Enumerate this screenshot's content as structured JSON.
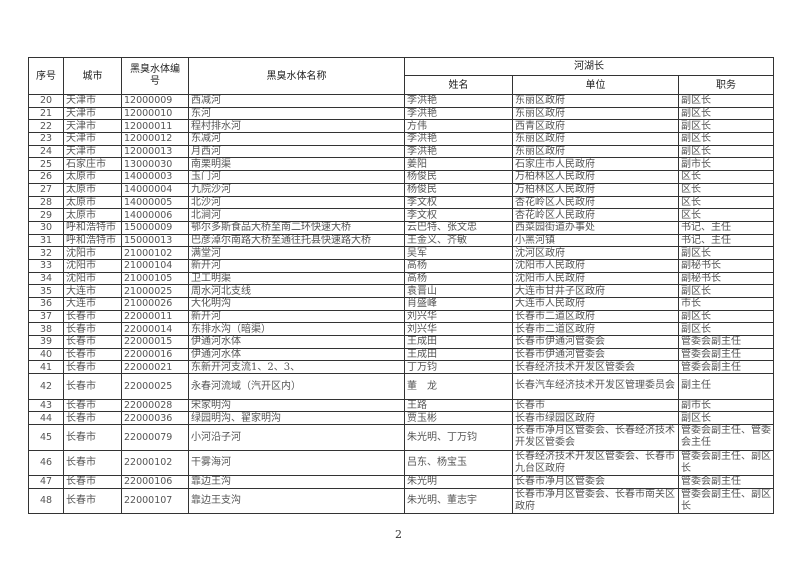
{
  "headers": {
    "index": "序号",
    "city": "城市",
    "code": "黑臭水体编号",
    "name": "黑臭水体名称",
    "chief_group": "河湖长",
    "chief_name": "姓名",
    "chief_unit": "单位",
    "chief_title": "职务"
  },
  "rows": [
    {
      "no": "20",
      "city": "天津市",
      "code": "12000009",
      "name": "西减河",
      "person": "李洪艳",
      "unit": "东丽区政府",
      "title": "副区长"
    },
    {
      "no": "21",
      "city": "天津市",
      "code": "12000010",
      "name": "东河",
      "person": "李洪艳",
      "unit": "东丽区政府",
      "title": "副区长"
    },
    {
      "no": "22",
      "city": "天津市",
      "code": "12000011",
      "name": "程村排水河",
      "person": "方伟",
      "unit": "西青区政府",
      "title": "副区长"
    },
    {
      "no": "23",
      "city": "天津市",
      "code": "12000012",
      "name": "东减河",
      "person": "李洪艳",
      "unit": "东丽区政府",
      "title": "副区长"
    },
    {
      "no": "24",
      "city": "天津市",
      "code": "12000013",
      "name": "月西河",
      "person": "李洪艳",
      "unit": "东丽区政府",
      "title": "副区长"
    },
    {
      "no": "25",
      "city": "石家庄市",
      "code": "13000030",
      "name": "南栗明渠",
      "person": "姜阳",
      "unit": "石家庄市人民政府",
      "title": "副市长"
    },
    {
      "no": "26",
      "city": "太原市",
      "code": "14000003",
      "name": "玉门河",
      "person": "杨俊民",
      "unit": "万柏林区人民政府",
      "title": "区长"
    },
    {
      "no": "27",
      "city": "太原市",
      "code": "14000004",
      "name": "九院沙河",
      "person": "杨俊民",
      "unit": "万柏林区人民政府",
      "title": "区长"
    },
    {
      "no": "28",
      "city": "太原市",
      "code": "14000005",
      "name": "北沙河",
      "person": "李文权",
      "unit": "杏花岭区人民政府",
      "title": "区长"
    },
    {
      "no": "29",
      "city": "太原市",
      "code": "14000006",
      "name": "北涧河",
      "person": "李文权",
      "unit": "杏花岭区人民政府",
      "title": "区长"
    },
    {
      "no": "30",
      "city": "呼和浩特市",
      "code": "15000009",
      "name": "鄂尔多斯食品大桥至南二环快速大桥",
      "person": "云巴特、张文忠",
      "unit": "西菜园街道办事处",
      "title": "书记、主任"
    },
    {
      "no": "31",
      "city": "呼和浩特市",
      "code": "15000013",
      "name": "巴彦淖尔南路大桥至通往托县快速路大桥",
      "person": "王金义、齐敏",
      "unit": "小黑河镇",
      "title": "书记、主任"
    },
    {
      "no": "32",
      "city": "沈阳市",
      "code": "21000102",
      "name": "满堂河",
      "person": "吴军",
      "unit": "沈河区政府",
      "title": "副区长"
    },
    {
      "no": "33",
      "city": "沈阳市",
      "code": "21000104",
      "name": "新开河",
      "person": "高杨",
      "unit": "沈阳市人民政府",
      "title": "副秘书长"
    },
    {
      "no": "34",
      "city": "沈阳市",
      "code": "21000105",
      "name": "卫工明渠",
      "person": "高杨",
      "unit": "沈阳市人民政府",
      "title": "副秘书长"
    },
    {
      "no": "35",
      "city": "大连市",
      "code": "21000025",
      "name": "周水河北支线",
      "person": "袁晋山",
      "unit": "大连市甘井子区政府",
      "title": "副区长"
    },
    {
      "no": "36",
      "city": "大连市",
      "code": "21000026",
      "name": "大化明沟",
      "person": "肖盛峰",
      "unit": "大连市人民政府",
      "title": "市长"
    },
    {
      "no": "37",
      "city": "长春市",
      "code": "22000011",
      "name": "新开河",
      "person": "刘兴华",
      "unit": "长春市二道区政府",
      "title": "副区长"
    },
    {
      "no": "38",
      "city": "长春市",
      "code": "22000014",
      "name": "东排水沟（暗渠）",
      "person": "刘兴华",
      "unit": "长春市二道区政府",
      "title": "副区长"
    },
    {
      "no": "39",
      "city": "长春市",
      "code": "22000015",
      "name": "伊通河水体",
      "person": "王成田",
      "unit": "长春市伊通河管委会",
      "title": "管委会副主任"
    },
    {
      "no": "40",
      "city": "长春市",
      "code": "22000016",
      "name": "伊通河水体",
      "person": "王成田",
      "unit": "长春市伊通河管委会",
      "title": "管委会副主任"
    },
    {
      "no": "41",
      "city": "长春市",
      "code": "22000021",
      "name": "东新开河支流1、2、3、",
      "person": "丁万钧",
      "unit": "长春经济技术开发区管委会",
      "title": "管委会副主任"
    },
    {
      "no": "42",
      "city": "长春市",
      "code": "22000025",
      "name": "永春河流域（汽开区内）",
      "person": "董　龙",
      "unit": "长春汽车经济技术开发区管理委员会",
      "title": "副主任",
      "tall": true
    },
    {
      "no": "43",
      "city": "长春市",
      "code": "22000028",
      "name": "宋家明沟",
      "person": "王路",
      "unit": "长春市",
      "title": "副市长"
    },
    {
      "no": "44",
      "city": "长春市",
      "code": "22000036",
      "name": "绿园明沟、翟家明沟",
      "person": "贾玉彬",
      "unit": "长春市绿园区政府",
      "title": "副区长"
    },
    {
      "no": "45",
      "city": "长春市",
      "code": "22000079",
      "name": "小河沿子河",
      "person": "朱光明、丁万钧",
      "unit": "长春市净月区管委会、长春经济技术开发区管委会",
      "title": "管委会副主任、管委会主任",
      "tall": true
    },
    {
      "no": "46",
      "city": "长春市",
      "code": "22000102",
      "name": "干雾海河",
      "person": "吕东、杨宝玉",
      "unit": "长春经济技术开发区管委会、长春市九台区政府",
      "title": "管委会副主任、副区长",
      "tall": true
    },
    {
      "no": "47",
      "city": "长春市",
      "code": "22000106",
      "name": "靠边王沟",
      "person": "朱光明",
      "unit": "长春市净月区管委会",
      "title": "管委会副主任"
    },
    {
      "no": "48",
      "city": "长春市",
      "code": "22000107",
      "name": "靠边王支沟",
      "person": "朱光明、董志宇",
      "unit": "长春市净月区管委会、长春市南关区政府",
      "title": "管委会副主任、副区长",
      "tall": true
    }
  ],
  "page_number": "2"
}
